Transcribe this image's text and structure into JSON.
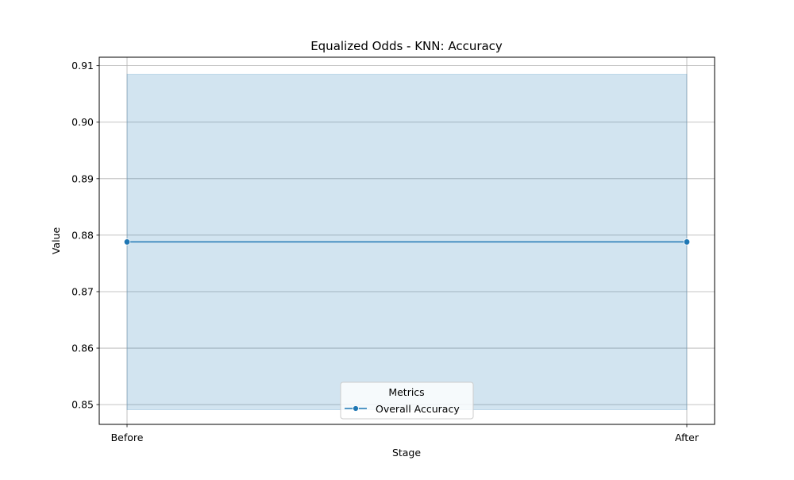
{
  "chart_data": {
    "type": "line",
    "title": "Equalized Odds - KNN: Accuracy",
    "xlabel": "Stage",
    "ylabel": "Value",
    "categories": [
      "Before",
      "After"
    ],
    "ylim": [
      0.8465,
      0.9115
    ],
    "yticks": [
      0.85,
      0.86,
      0.87,
      0.88,
      0.89,
      0.9,
      0.91
    ],
    "ytick_labels": [
      "0.85",
      "0.86",
      "0.87",
      "0.88",
      "0.89",
      "0.90",
      "0.91"
    ],
    "grid": true,
    "legend": {
      "title": "Metrics",
      "placement": "bottom-center"
    },
    "series": [
      {
        "name": "Overall Accuracy",
        "values": [
          0.8788,
          0.8788
        ],
        "band_low": [
          0.8491,
          0.8491
        ],
        "band_high": [
          0.9085,
          0.9085
        ],
        "color": "#1f77b4",
        "band_color": "#1f77b4"
      }
    ]
  }
}
